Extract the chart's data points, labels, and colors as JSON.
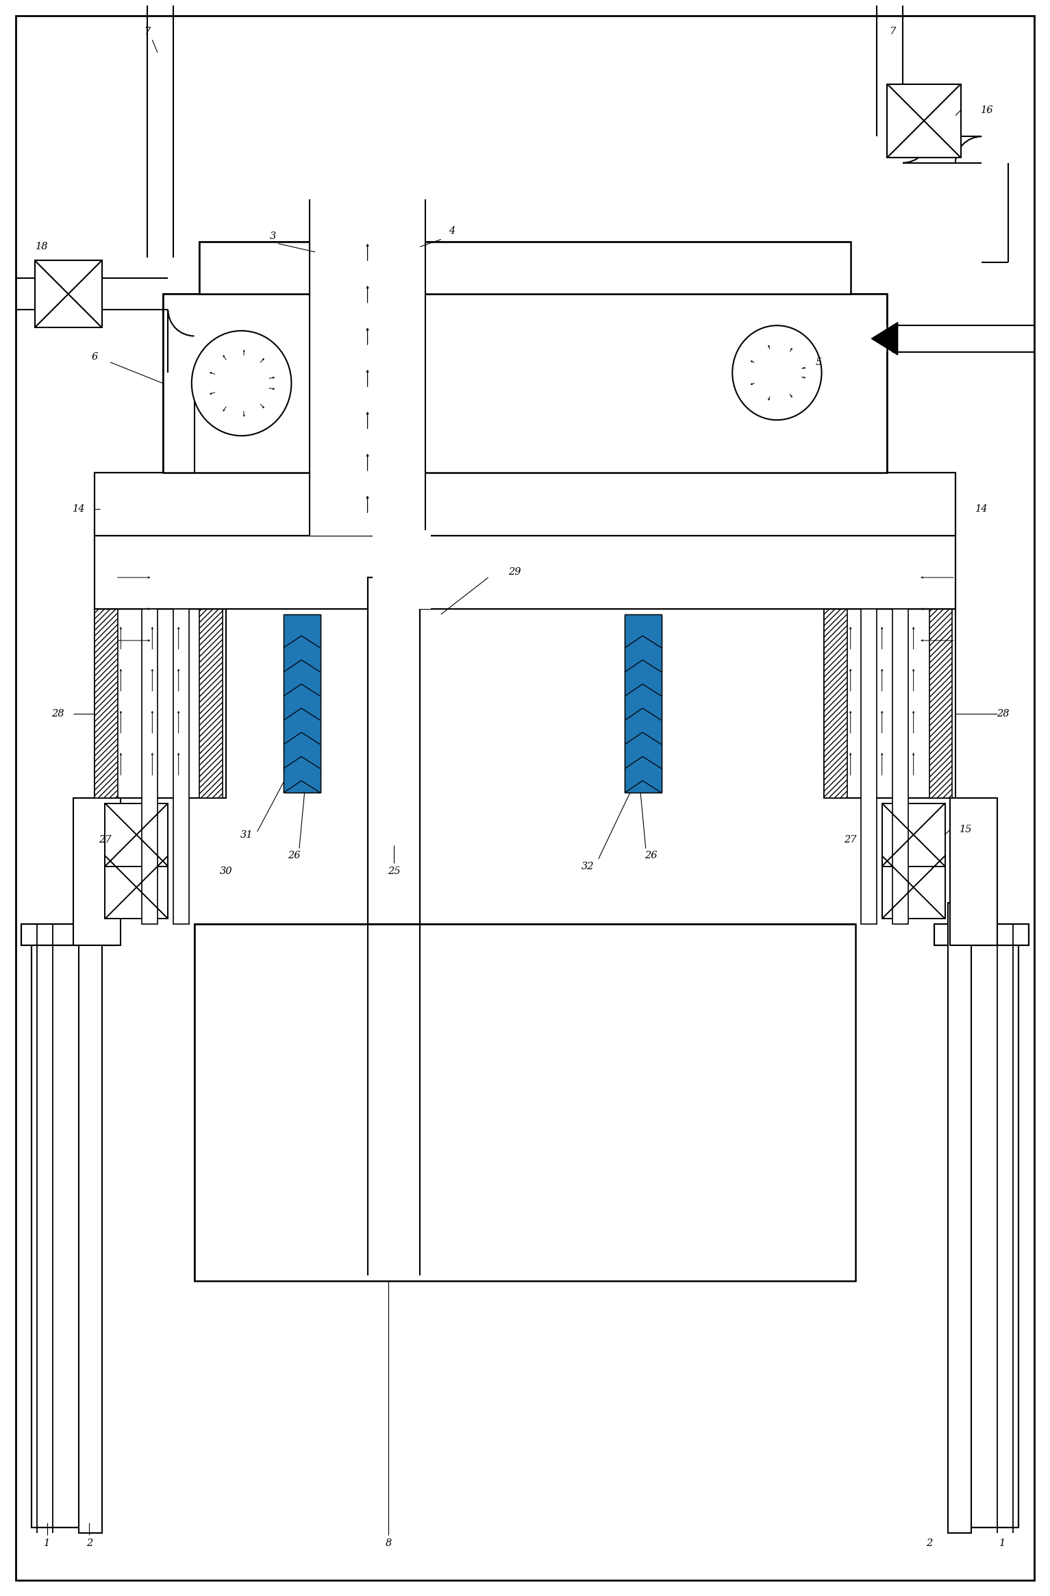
{
  "bg": "#ffffff",
  "figsize": [
    15.33,
    23.3
  ],
  "dpi": 100,
  "lw_main": 1.4,
  "lw_thin": 0.8,
  "lw_thick": 1.8
}
